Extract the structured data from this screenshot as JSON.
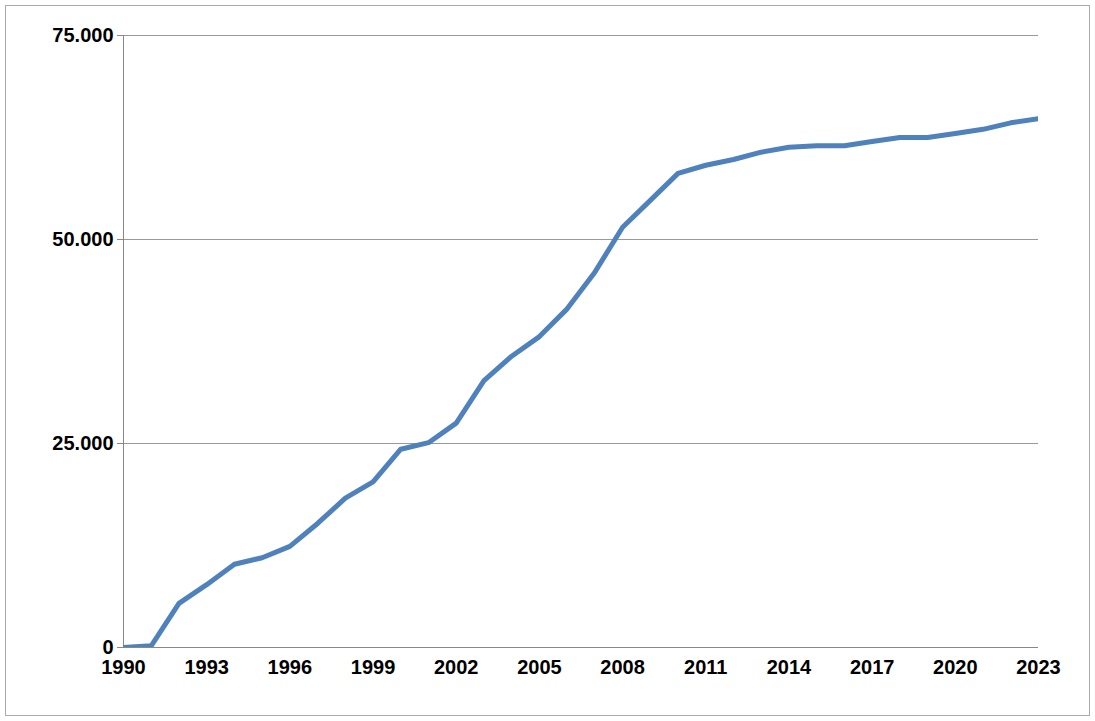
{
  "chart_data": {
    "type": "line",
    "x": [
      1990,
      1991,
      1992,
      1993,
      1994,
      1995,
      1996,
      1997,
      1998,
      1999,
      2000,
      2001,
      2002,
      2003,
      2004,
      2005,
      2006,
      2007,
      2008,
      2009,
      2010,
      2011,
      2012,
      2013,
      2014,
      2015,
      2016,
      2017,
      2018,
      2019,
      2020,
      2021,
      2022,
      2023
    ],
    "values": [
      0,
      200,
      5400,
      7700,
      10200,
      11000,
      12400,
      15200,
      18300,
      20300,
      24300,
      25100,
      27500,
      32700,
      35700,
      38100,
      41500,
      46000,
      51500,
      54800,
      58100,
      59100,
      59800,
      60700,
      61300,
      61500,
      61500,
      62000,
      62500,
      62500,
      63000,
      63500,
      64300,
      64800
    ],
    "color": "#4f81bd",
    "xlim": [
      1990,
      2023
    ],
    "xticks": [
      1990,
      1993,
      1996,
      1999,
      2002,
      2005,
      2008,
      2011,
      2014,
      2017,
      2020,
      2023
    ],
    "ylim": [
      0,
      75000
    ],
    "yticks": [
      0,
      {
        "value": 25000,
        "label": "25.000"
      },
      {
        "value": 50000,
        "label": "50.000"
      },
      {
        "value": 75000,
        "label": "75.000"
      }
    ],
    "grid": true
  }
}
